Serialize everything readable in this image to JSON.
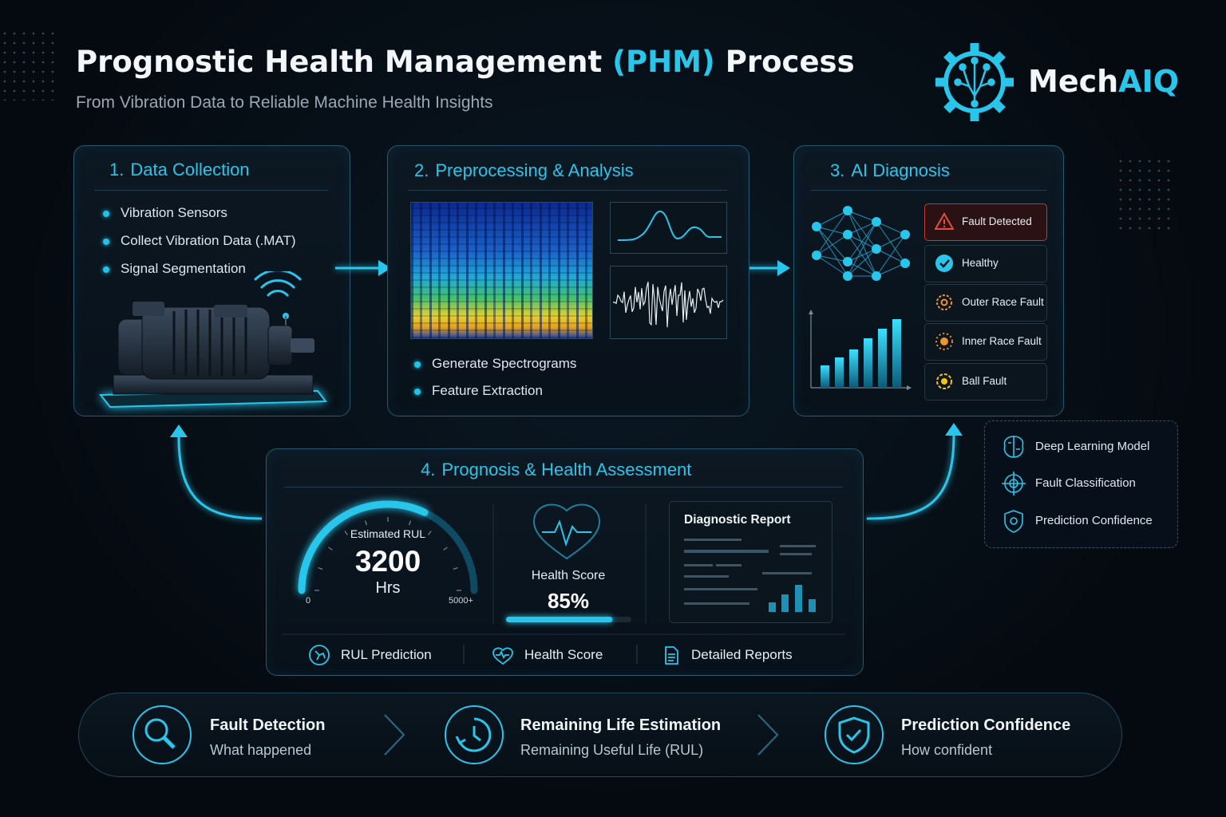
{
  "header": {
    "title": [
      "Prognostic Health Management",
      "(PHM)",
      "Process"
    ],
    "subtitle": "From Vibration Data to Reliable Machine Health Insights"
  },
  "brand": [
    "Mech",
    "AIQ"
  ],
  "steps": [
    {
      "number": "1.",
      "title": "Data Collection",
      "items": [
        "Vibration Sensors",
        "Collect Vibration Data (.MAT)",
        "Signal Segmentation"
      ]
    },
    {
      "number": "2.",
      "title": "Preprocessing & Analysis",
      "items": [
        "Generate Spectrograms",
        "Feature Extraction"
      ]
    },
    {
      "number": "3.",
      "title": "AI Diagnosis",
      "classes": [
        "Fault Detected",
        "Healthy",
        "Outer Race Fault",
        "Inner Race Fault",
        "Ball Fault"
      ]
    }
  ],
  "model_notes": [
    "Deep Learning Model",
    "Fault Classification",
    "Prediction Confidence"
  ],
  "assessment": {
    "number": "4.",
    "title": "Prognosis & Health Assessment",
    "rul": {
      "label": "Estimated RUL",
      "value": 3200,
      "unit": "Hrs",
      "min": 0,
      "max": {
        "value": 5000,
        "label": "5000+"
      }
    },
    "health": {
      "label": "Health Score",
      "score": {
        "value": 85,
        "label": "85%"
      }
    },
    "report_title": "Diagnostic Report",
    "features": [
      "RUL Prediction",
      "Health Score",
      "Detailed Reports"
    ]
  },
  "outcomes": [
    {
      "title": "Fault Detection",
      "subtitle": "What happened"
    },
    {
      "title": "Remaining Life Estimation",
      "subtitle": "Remaining Useful Life (RUL)"
    },
    {
      "title": "Prediction Confidence",
      "subtitle": "How confident"
    }
  ]
}
